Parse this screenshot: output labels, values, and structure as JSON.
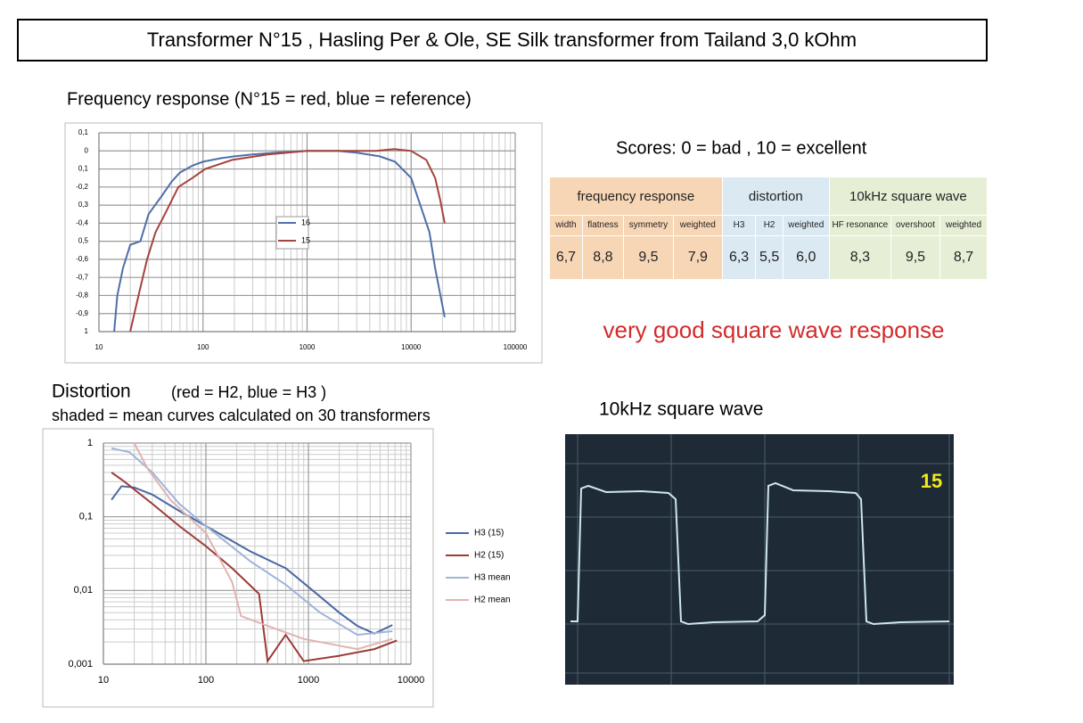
{
  "header": {
    "title": "Transformer N°15 ,    Hasling Per & Ole,     SE Silk transformer from Tailand 3,0 kOhm"
  },
  "chart_data": [
    {
      "type": "line",
      "title": "Frequency response  (N°15 = red,   blue = reference)",
      "xscale": "log",
      "yscale": "linear",
      "grid": true,
      "xlim": [
        10,
        100000
      ],
      "xticks": [
        10,
        100,
        1000,
        10000,
        100000
      ],
      "ylim": [
        -1,
        0.1
      ],
      "yticks": [
        {
          "value": 0.1,
          "label": "0,1"
        },
        0,
        {
          "value": -0.1,
          "label": "0,1"
        },
        {
          "value": -0.2,
          "label": "-0,2"
        },
        {
          "value": -0.3,
          "label": "0,3"
        },
        {
          "value": -0.4,
          "label": "-0,4"
        },
        {
          "value": -0.5,
          "label": "0,5"
        },
        {
          "value": -0.6,
          "label": "-0,6"
        },
        {
          "value": -0.7,
          "label": "-0,7"
        },
        {
          "value": -0.8,
          "label": "-0,8"
        },
        {
          "value": -0.9,
          "label": "-0,9"
        },
        {
          "value": -1,
          "label": "1"
        }
      ],
      "series": [
        {
          "name": "16",
          "color": "#4f6fa8",
          "x": [
            14,
            15,
            17,
            20,
            25,
            30,
            40,
            50,
            60,
            80,
            100,
            150,
            200,
            300,
            500,
            1000,
            2000,
            3000,
            5000,
            7000,
            10000,
            15000,
            17000,
            21000
          ],
          "values": [
            -1,
            -0.8,
            -0.65,
            -0.52,
            -0.5,
            -0.35,
            -0.25,
            -0.17,
            -0.12,
            -0.08,
            -0.06,
            -0.04,
            -0.03,
            -0.02,
            -0.01,
            0,
            0,
            -0.01,
            -0.03,
            -0.06,
            -0.15,
            -0.45,
            -0.65,
            -0.92
          ]
        },
        {
          "name": "15",
          "color": "#a5433d",
          "x": [
            20,
            24,
            29,
            35,
            43,
            58,
            79,
            105,
            190,
            420,
            1000,
            4600,
            6900,
            10000,
            14000,
            17000,
            19000,
            21000
          ],
          "values": [
            -1,
            -0.8,
            -0.6,
            -0.45,
            -0.35,
            -0.2,
            -0.15,
            -0.1,
            -0.05,
            -0.02,
            0,
            0,
            0.01,
            0,
            -0.05,
            -0.15,
            -0.27,
            -0.4
          ]
        }
      ]
    },
    {
      "type": "line",
      "title": "Distortion",
      "title_note": "(red = H2, blue = H3 )",
      "subtitle": "shaded  =  mean curves calculated on 30 transformers",
      "xscale": "log",
      "yscale": "log",
      "grid": true,
      "xlim": [
        10,
        10000
      ],
      "xticks": [
        10,
        100,
        1000,
        10000
      ],
      "ylim": [
        0.001,
        1
      ],
      "yticks": [
        {
          "value": 0.001,
          "label": "0,001"
        },
        {
          "value": 0.01,
          "label": "0,01"
        },
        {
          "value": 0.1,
          "label": "0,1"
        },
        1
      ],
      "series": [
        {
          "name": "H3 (15)",
          "color": "#4a68a3",
          "x": [
            12,
            15,
            20,
            30,
            55,
            100,
            270,
            600,
            1100,
            2000,
            3000,
            4400,
            6600
          ],
          "values": [
            0.17,
            0.26,
            0.25,
            0.2,
            0.12,
            0.075,
            0.034,
            0.02,
            0.01,
            0.005,
            0.0033,
            0.0026,
            0.0034
          ]
        },
        {
          "name": "H2 (15)",
          "color": "#9b3b36",
          "x": [
            12,
            16,
            30,
            55,
            100,
            180,
            330,
            400,
            600,
            900,
            2000,
            4400,
            7300
          ],
          "values": [
            0.4,
            0.3,
            0.15,
            0.075,
            0.04,
            0.02,
            0.009,
            0.0011,
            0.0025,
            0.0011,
            0.0013,
            0.0016,
            0.0021
          ]
        },
        {
          "name": "H3 mean",
          "color": "#9fb4da",
          "x": [
            12,
            18,
            30,
            55,
            100,
            270,
            600,
            1300,
            3000,
            6600
          ],
          "values": [
            0.85,
            0.75,
            0.4,
            0.15,
            0.075,
            0.025,
            0.012,
            0.005,
            0.0025,
            0.0028
          ]
        },
        {
          "name": "H2 mean",
          "color": "#e0b4b2",
          "x": [
            20,
            27,
            45,
            100,
            180,
            220,
            400,
            900,
            3000,
            6600
          ],
          "values": [
            1,
            0.45,
            0.17,
            0.06,
            0.013,
            0.0045,
            0.0033,
            0.0022,
            0.0016,
            0.0022
          ]
        }
      ]
    }
  ],
  "scores": {
    "caption": "Scores:   0 = bad ,   10 = excellent",
    "groups": [
      "frequency response",
      "distortion",
      "10kHz  square wave"
    ],
    "columns": [
      "width",
      "flatness",
      "symmetry",
      "weighted",
      "H3",
      "H2",
      "weighted",
      "HF resonance",
      "overshoot",
      "weighted"
    ],
    "values": [
      "6,7",
      "8,8",
      "9,5",
      "7,9",
      "6,3",
      "5,5",
      "6,0",
      "8,3",
      "9,5",
      "8,7"
    ]
  },
  "verdict": "very good square wave response",
  "scope": {
    "caption": "10kHz square wave",
    "label": "15"
  }
}
